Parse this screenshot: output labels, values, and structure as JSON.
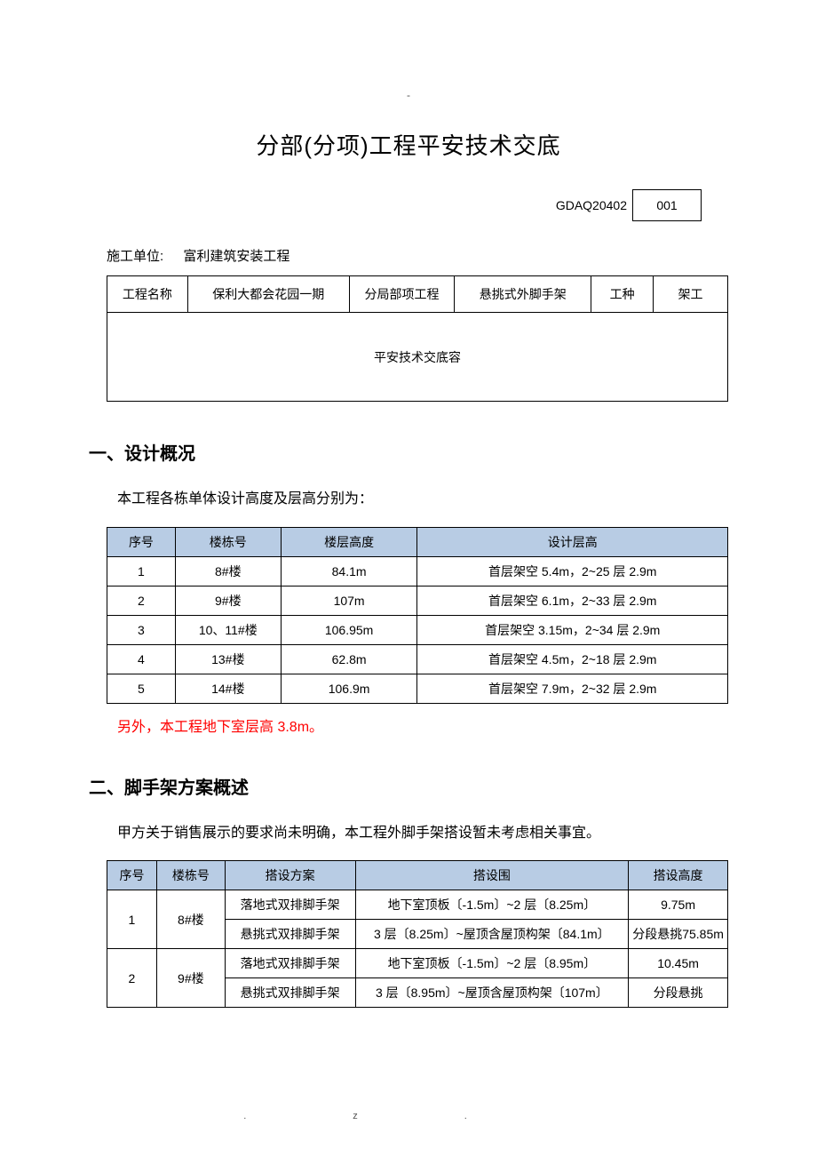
{
  "top_dash": "-",
  "title": "分部(分项)工程平安技术交底",
  "code_label": "GDAQ20402",
  "code_value": "001",
  "unit": {
    "label": "施工单位:",
    "value": "富利建筑安装工程"
  },
  "info_table": {
    "col_widths": [
      "13%",
      "26%",
      "17%",
      "22%",
      "10%",
      "12%"
    ],
    "c1": "工程名称",
    "c2": "保利大都会花园一期",
    "c3": "分局部项工程",
    "c4": "悬挑式外脚手架",
    "c5": "工种",
    "c6": "架工",
    "r2": "平安技术交底容"
  },
  "section1": {
    "heading": "一、设计概况",
    "intro": "本工程各栋单体设计高度及层高分别为：",
    "header_bg": "#b8cce4",
    "col_widths": [
      "11%",
      "17%",
      "22%",
      "50%"
    ],
    "headers": [
      "序号",
      "楼栋号",
      "楼层高度",
      "设计层高"
    ],
    "rows": [
      [
        "1",
        "8#楼",
        "84.1m",
        "首层架空 5.4m，2~25 层 2.9m"
      ],
      [
        "2",
        "9#楼",
        "107m",
        "首层架空 6.1m，2~33 层 2.9m"
      ],
      [
        "3",
        "10、11#楼",
        "106.95m",
        "首层架空 3.15m，2~34 层 2.9m"
      ],
      [
        "4",
        "13#楼",
        "62.8m",
        "首层架空 4.5m，2~18 层 2.9m"
      ],
      [
        "5",
        "14#楼",
        "106.9m",
        "首层架空 7.9m，2~32 层 2.9m"
      ]
    ],
    "note": "另外，本工程地下室层高 3.8m。"
  },
  "section2": {
    "heading": "二、脚手架方案概述",
    "intro": "甲方关于销售展示的要求尚未明确，本工程外脚手架搭设暂未考虑相关事宜。",
    "header_bg": "#b8cce4",
    "col_widths": [
      "8%",
      "11%",
      "21%",
      "44%",
      "16%"
    ],
    "headers": [
      "序号",
      "楼栋号",
      "搭设方案",
      "搭设围",
      "搭设高度"
    ],
    "rows": [
      {
        "no": "1",
        "bld": "8#楼",
        "schemes": [
          {
            "plan": "落地式双排脚手架",
            "range": "地下室顶板〔-1.5m〕~2 层〔8.25m〕",
            "h": "9.75m"
          },
          {
            "plan": "悬挑式双排脚手架",
            "range": "3 层〔8.25m〕~屋顶含屋顶构架〔84.1m〕",
            "h": "分段悬挑75.85m"
          }
        ]
      },
      {
        "no": "2",
        "bld": "9#楼",
        "schemes": [
          {
            "plan": "落地式双排脚手架",
            "range": "地下室顶板〔-1.5m〕~2 层〔8.95m〕",
            "h": "10.45m"
          },
          {
            "plan": "悬挑式双排脚手架",
            "range": "3 层〔8.95m〕~屋顶含屋顶构架〔107m〕",
            "h": "分段悬挑"
          }
        ]
      }
    ]
  },
  "footer": {
    "a": ".",
    "b": "z."
  }
}
